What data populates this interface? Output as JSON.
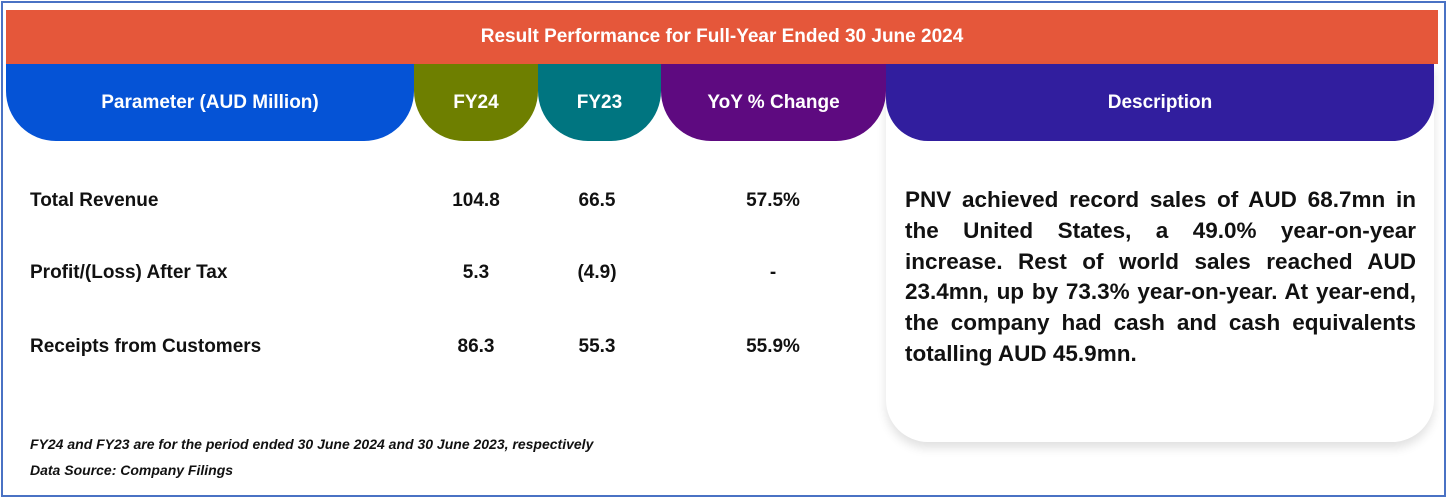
{
  "title": "Result Performance for Full-Year Ended 30 June 2024",
  "headers": {
    "parameter": "Parameter (AUD Million)",
    "fy24": "FY24",
    "fy23": "FY23",
    "yoy": "YoY % Change",
    "description": "Description"
  },
  "colors": {
    "banner": "#e5573a",
    "parameter": "#0553d6",
    "fy24": "#6e7f00",
    "fy23": "#007580",
    "yoy": "#5e0a80",
    "description": "#311e9e"
  },
  "rows": [
    {
      "label": "Total Revenue",
      "fy24": "104.8",
      "fy23": "66.5",
      "yoy": "57.5%"
    },
    {
      "label": "Profit/(Loss) After Tax",
      "fy24": "5.3",
      "fy23": "(4.9)",
      "yoy": "-"
    },
    {
      "label": "Receipts from Customers",
      "fy24": "86.3",
      "fy23": "55.3",
      "yoy": "55.9%"
    }
  ],
  "description": "PNV achieved record sales of AUD 68.7mn in the United States, a 49.0% year-on-year increase. Rest of world sales reached AUD 23.4mn, up by 73.3% year-on-year. At year-end, the company had cash and cash equivalents totalling AUD 45.9mn.",
  "footnotes": [
    "FY24 and FY23 are for the period ended 30 June 2024 and 30 June 2023, respectively",
    "Data Source: Company Filings"
  ]
}
